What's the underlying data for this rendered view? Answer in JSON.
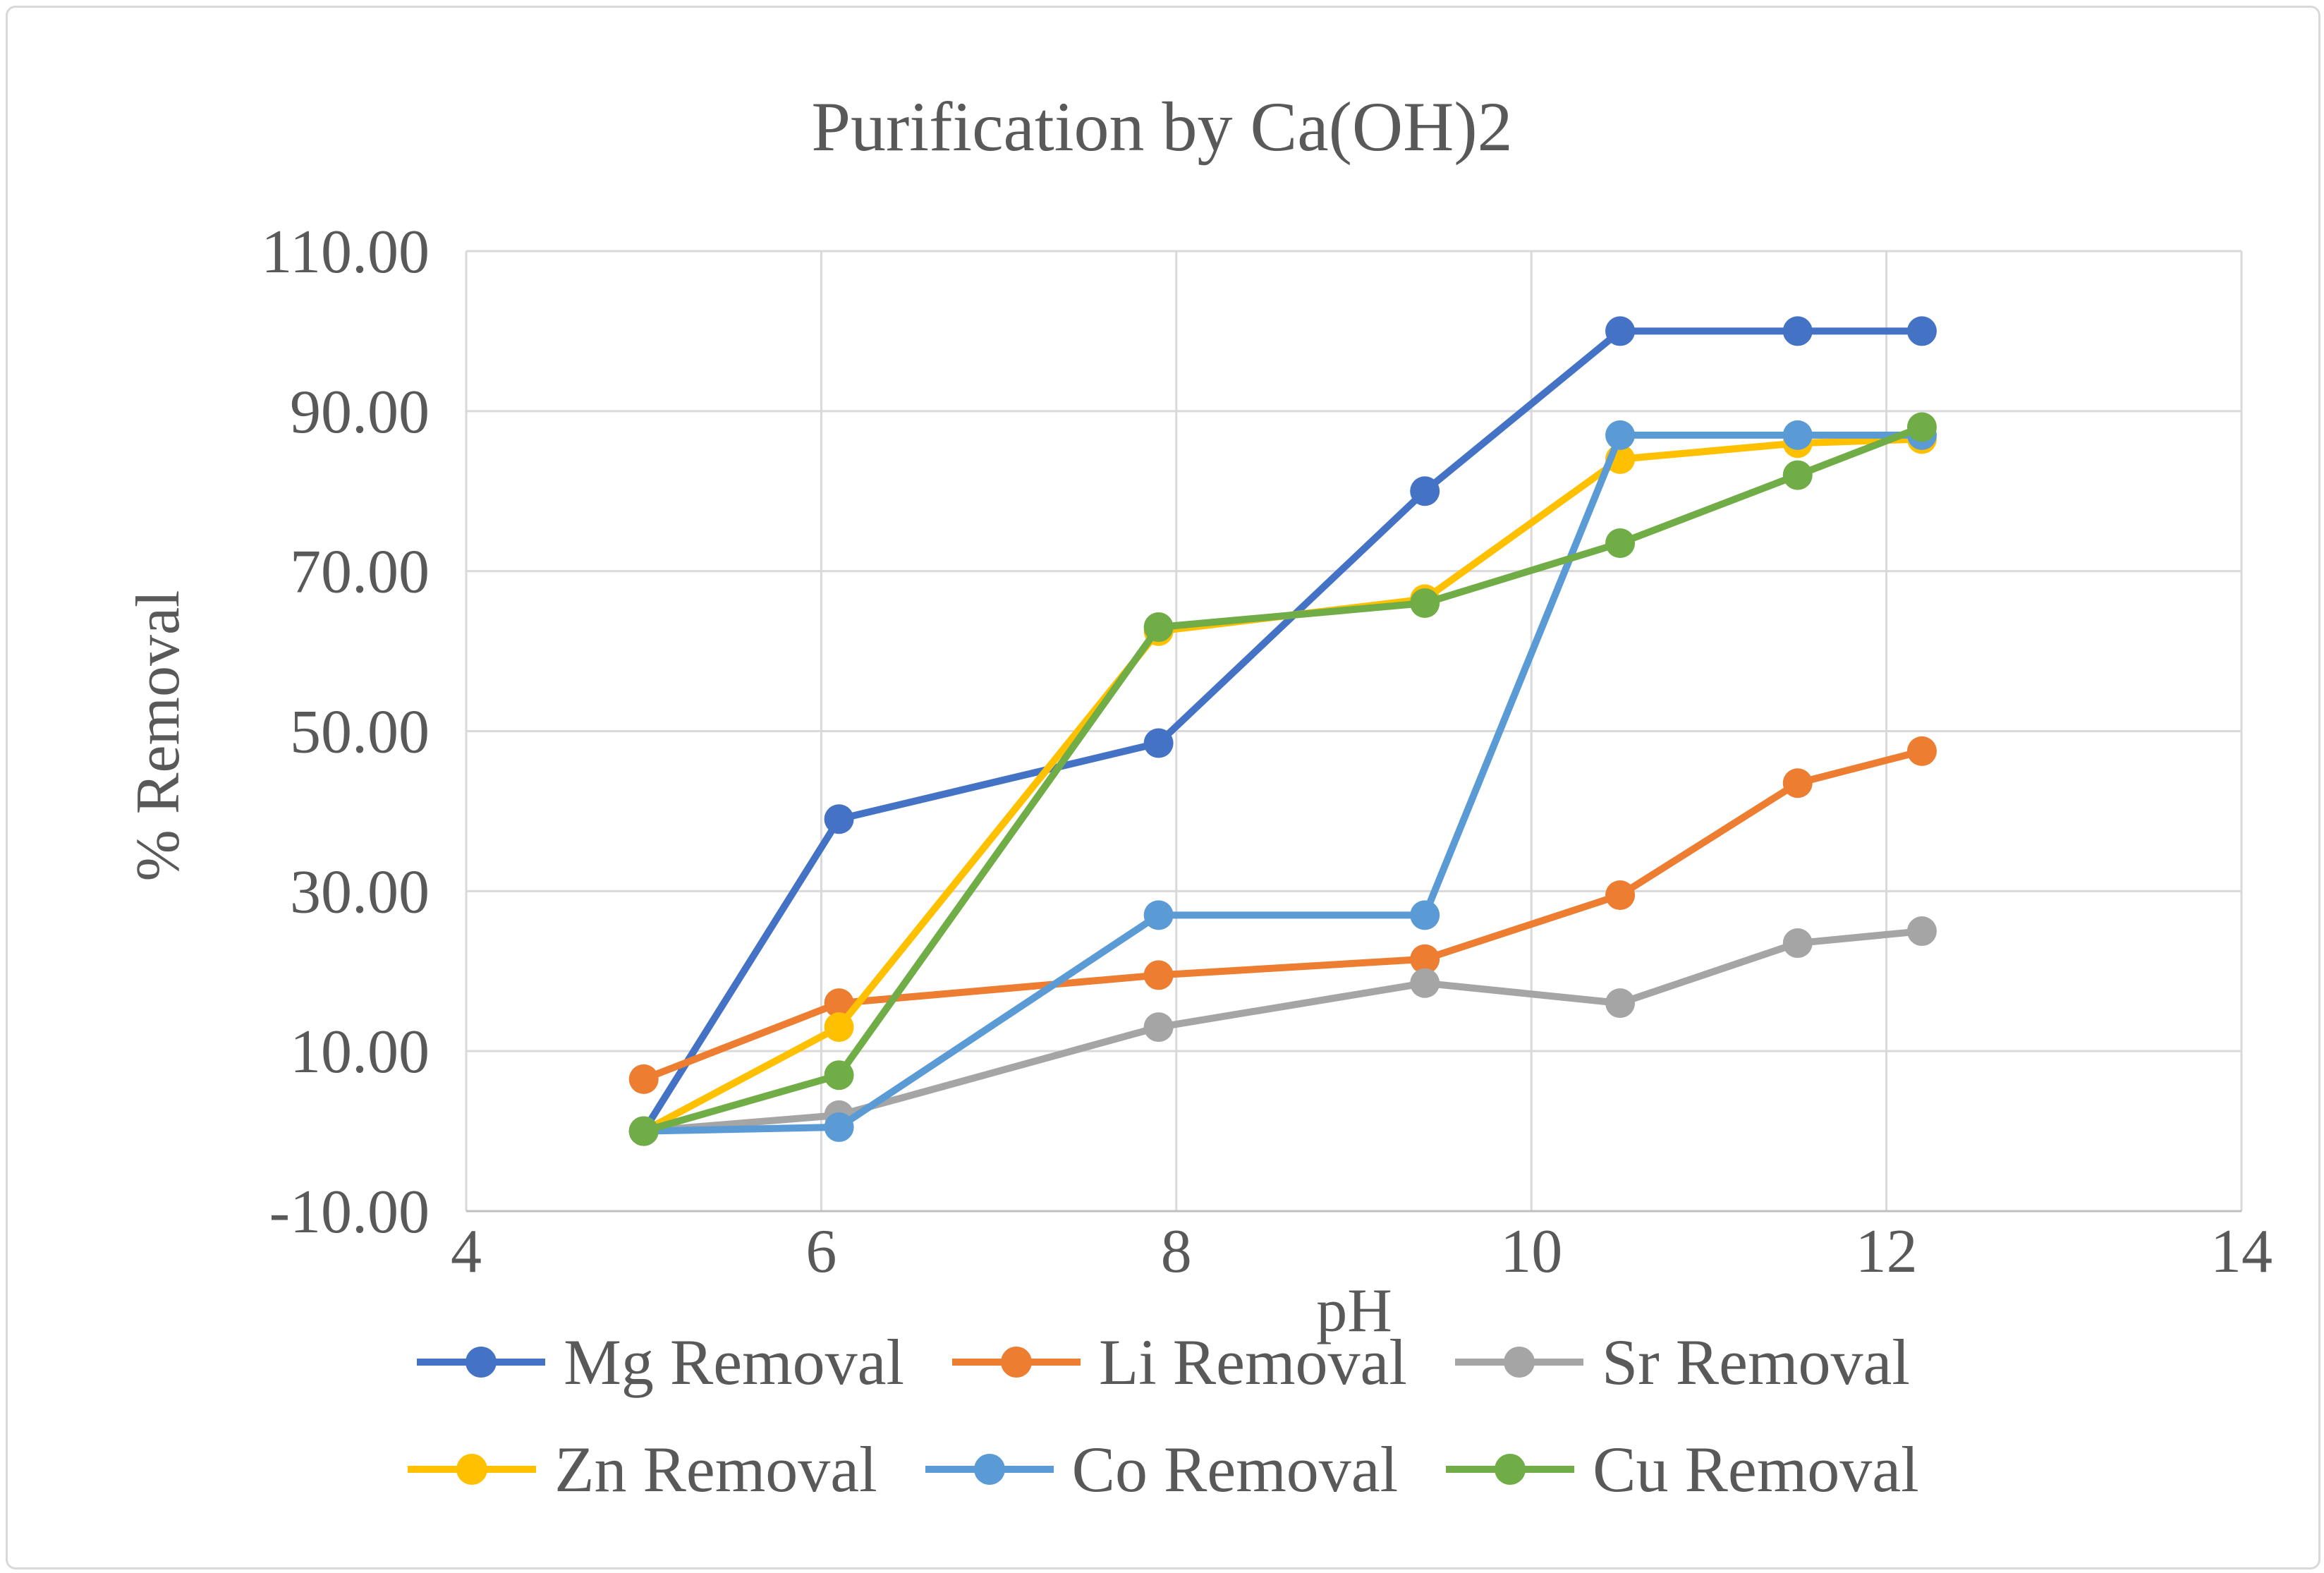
{
  "frame": {
    "background": "#FFFFFF",
    "border_color": "#D9D9D9"
  },
  "chart_data": {
    "type": "line",
    "title": "Purification by Ca(OH)2",
    "xlabel": "pH",
    "ylabel": "% Removal",
    "xlim": [
      4,
      14
    ],
    "ylim": [
      -10,
      110
    ],
    "x_ticks": [
      4,
      6,
      8,
      10,
      12,
      14
    ],
    "y_ticks": [
      "-10.00",
      "10.00",
      "30.00",
      "50.00",
      "70.00",
      "90.00",
      "110.00"
    ],
    "y_tick_values": [
      -10,
      10,
      30,
      50,
      70,
      90,
      110
    ],
    "grid": true,
    "legend_position": "bottom",
    "text_color": "#595959",
    "gridline_color": "#D9D9D9",
    "axis_line_color": "#BFBFBF",
    "x": [
      5.0,
      6.1,
      7.9,
      9.4,
      10.5,
      11.5,
      12.2
    ],
    "series": [
      {
        "id": "mg",
        "name": "Mg Removal",
        "color": "#4472C4",
        "values": [
          0,
          39,
          48.5,
          80,
          100,
          100,
          100
        ]
      },
      {
        "id": "li",
        "name": "Li Removal",
        "color": "#ED7D31",
        "values": [
          6.5,
          16,
          19.5,
          21.5,
          29.5,
          43.5,
          47.5
        ]
      },
      {
        "id": "sr",
        "name": "Sr Removal",
        "color": "#A5A5A5",
        "values": [
          0,
          2,
          13,
          18.5,
          16,
          23.5,
          25
        ]
      },
      {
        "id": "zn",
        "name": "Zn Removal",
        "color": "#FFC000",
        "values": [
          0,
          13,
          62.5,
          66.5,
          84,
          86,
          86.5
        ]
      },
      {
        "id": "co",
        "name": "Co Removal",
        "color": "#5B9BD5",
        "values": [
          0,
          0.5,
          27,
          27,
          87,
          87,
          87
        ]
      },
      {
        "id": "cu",
        "name": "Cu Removal",
        "color": "#70AD47",
        "values": [
          0,
          7,
          63,
          66,
          73.5,
          82,
          88
        ]
      }
    ]
  }
}
